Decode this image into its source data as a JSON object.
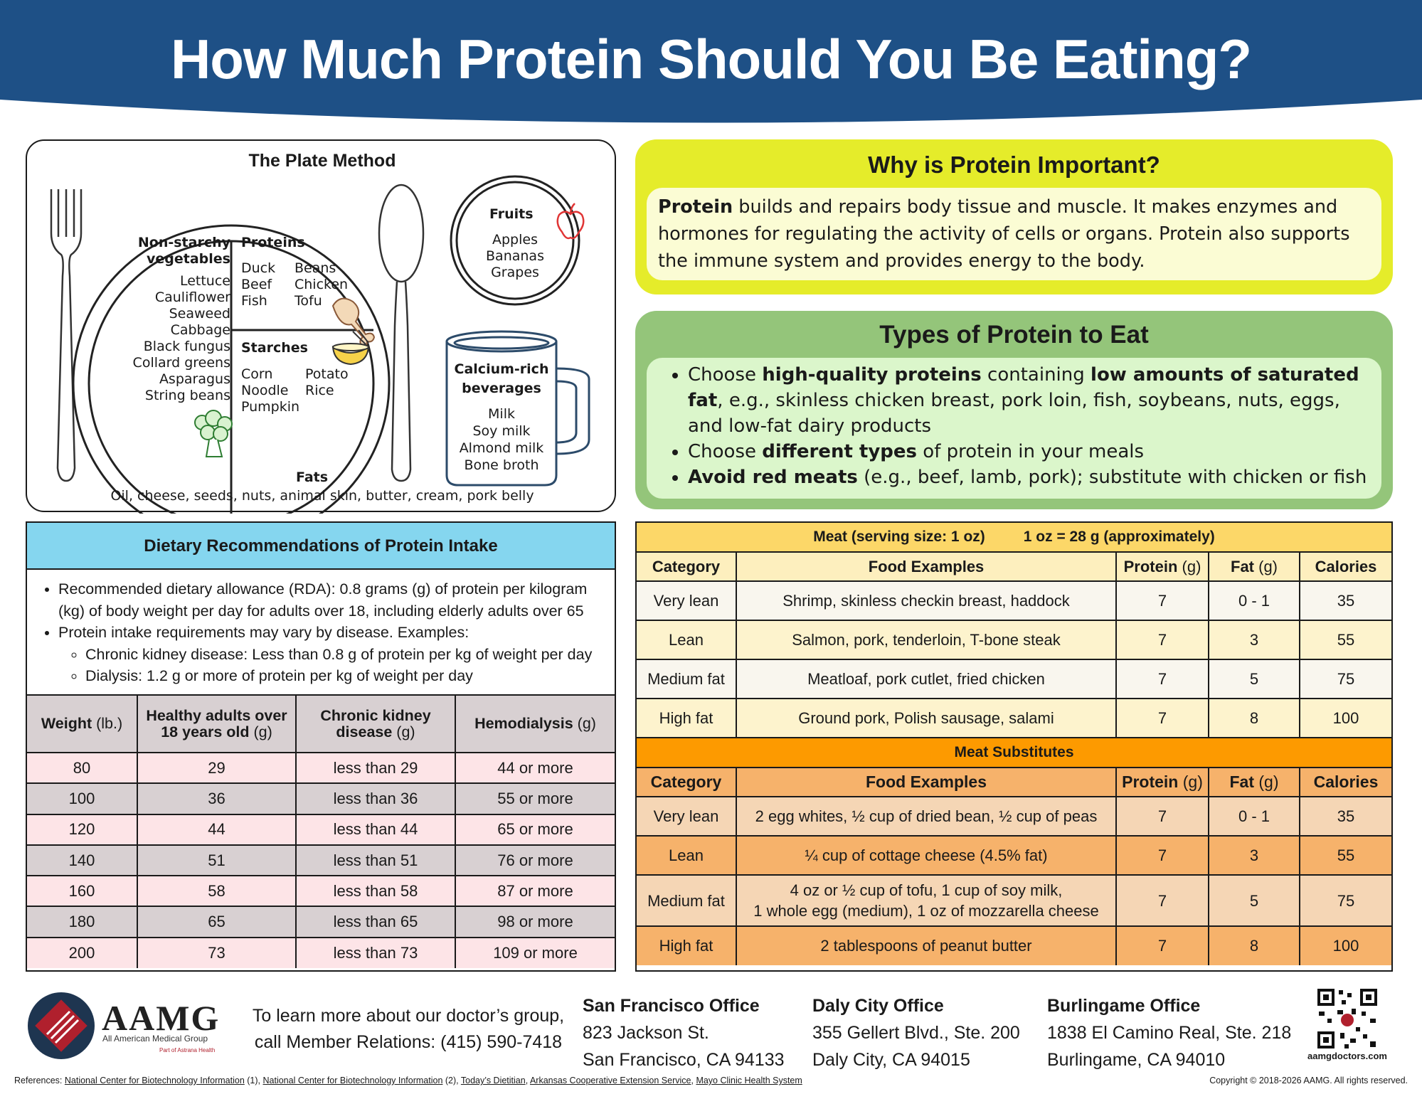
{
  "header": {
    "title": "How Much Protein Should You Be Eating?",
    "bg_color": "#1e5086"
  },
  "plate": {
    "title": "The Plate Method",
    "veg_heading_1": "Non-starchy",
    "veg_heading_2": "vegetables",
    "veg_items": [
      "Lettuce",
      "Cauliflower",
      "Seaweed",
      "Cabbage",
      "Black fungus",
      "Collard greens",
      "Asparagus",
      "String beans"
    ],
    "proteins_heading": "Proteins",
    "proteins_col1": [
      "Duck",
      "Beef",
      "Fish"
    ],
    "proteins_col2": [
      "Beans",
      "Chicken",
      "Tofu"
    ],
    "starches_heading": "Starches",
    "starches_col1": [
      "Corn",
      "Noodle",
      "Pumpkin"
    ],
    "starches_col2": [
      "Potato",
      "Rice"
    ],
    "fats_heading": "Fats",
    "fats_text": "Oil, cheese, seeds, nuts, animal skin, butter, cream, pork belly",
    "fruits_heading": "Fruits",
    "fruits_items": [
      "Apples",
      "Bananas",
      "Grapes"
    ],
    "calcium_heading_1": "Calcium-rich",
    "calcium_heading_2": "beverages",
    "calcium_items": [
      "Milk",
      "Soy milk",
      "Almond milk",
      "Bone broth"
    ]
  },
  "why": {
    "title": "Why is Protein Important?",
    "lead": "Protein",
    "text": " builds and repairs body tissue and muscle. It makes enzymes and hormones for regulating the activity of cells or organs. Protein also supports the immune system and provides energy to the body."
  },
  "types": {
    "title": "Types of Protein to Eat",
    "b1_a": "Choose ",
    "b1_b": "high-quality proteins",
    "b1_c": " containing ",
    "b1_d": "low amounts of saturated fat",
    "b1_e": ", e.g., skinless chicken breast, pork loin, fish, soybeans, nuts, eggs, and low-fat dairy products",
    "b2_a": "Choose ",
    "b2_b": "different types",
    "b2_c": " of protein in your meals",
    "b3_a": "Avoid red meats",
    "b3_b": " (e.g., beef, lamb, pork); substitute with chicken or fish"
  },
  "diet": {
    "title": "Dietary Recommendations of Protein Intake",
    "bullet1": "Recommended dietary allowance (RDA): 0.8 grams (g) of protein per kilogram (kg) of body weight per day for adults over 18, including elderly adults over 65",
    "bullet2": "Protein intake requirements may vary by disease. Examples:",
    "sub1": "Chronic kidney disease: Less than 0.8 g of protein per kg of weight per day",
    "sub2": "Dialysis: 1.2 g or more of protein per kg of weight per day",
    "headers": {
      "weight": "Weight",
      "weight_unit": " (lb.)",
      "healthy_1": "Healthy adults over",
      "healthy_2": "18 years old",
      "healthy_unit": " (g)",
      "ckd_1": "Chronic kidney",
      "ckd_2": "disease",
      "ckd_unit": " (g)",
      "hemo": "Hemodialysis",
      "hemo_unit": " (g)"
    },
    "rows": [
      [
        "80",
        "29",
        "less than 29",
        "44 or more"
      ],
      [
        "100",
        "36",
        "less than 36",
        "55 or more"
      ],
      [
        "120",
        "44",
        "less than 44",
        "65 or more"
      ],
      [
        "140",
        "51",
        "less than 51",
        "76 or more"
      ],
      [
        "160",
        "58",
        "less than 58",
        "87 or more"
      ],
      [
        "180",
        "65",
        "less than 65",
        "98 or more"
      ],
      [
        "200",
        "73",
        "less than 73",
        "109 or more"
      ]
    ]
  },
  "meat": {
    "banner_a": "Meat (serving size: 1 oz)",
    "banner_b": "1 oz = 28 g (approximately)",
    "headers": {
      "category": "Category",
      "examples": "Food Examples",
      "protein": "Protein",
      "protein_unit": " (g)",
      "fat": "Fat",
      "fat_unit": " (g)",
      "calories": "Calories"
    },
    "rows": [
      [
        "Very lean",
        "Shrimp, skinless checkin breast, haddock",
        "7",
        "0 - 1",
        "35"
      ],
      [
        "Lean",
        "Salmon, pork, tenderloin, T-bone steak",
        "7",
        "3",
        "55"
      ],
      [
        "Medium fat",
        "Meatloaf, pork cutlet, fried chicken",
        "7",
        "5",
        "75"
      ],
      [
        "High fat",
        "Ground pork, Polish sausage, salami",
        "7",
        "8",
        "100"
      ]
    ],
    "sub_banner": "Meat Substitutes",
    "sub_rows": [
      [
        "Very lean",
        "2 egg whites, ½ cup of dried bean, ½ cup of peas",
        "7",
        "0 - 1",
        "35"
      ],
      [
        "Lean",
        "¼ cup of cottage cheese (4.5% fat)",
        "7",
        "3",
        "55"
      ],
      [
        "Medium fat",
        "4 oz or ½ cup of tofu, 1 cup of soy milk,",
        "7",
        "5",
        "75"
      ],
      [
        "High fat",
        "2 tablespoons of peanut butter",
        "7",
        "8",
        "100"
      ]
    ],
    "sub_row3_line2": "1 whole egg (medium), 1 oz of mozzarella cheese"
  },
  "footer": {
    "logo_text": "AAMG",
    "logo_sub": "All American Medical Group",
    "logo_part": "Part of",
    "logo_partner": "Astrana Health",
    "contact_1": "To learn more about our doctor’s group,",
    "contact_2": "call Member Relations: (415) 590-7418",
    "offices": [
      {
        "name": "San Francisco Office",
        "line1": "823 Jackson St.",
        "line2": "San Francisco, CA 94133"
      },
      {
        "name": "Daly City Office",
        "line1": "355 Gellert Blvd., Ste. 200",
        "line2": "Daly City, CA 94015"
      },
      {
        "name": "Burlingame Office",
        "line1": "1838 El Camino Real, Ste. 218",
        "line2": "Burlingame, CA 94010"
      }
    ],
    "website": "aamgdoctors.com",
    "refs_label": "References: ",
    "ref1": "National Center for Biotechnology Information",
    "ref1_num": " (1), ",
    "ref2": "National Center for Biotechnology Information",
    "ref2_num": " (2), ",
    "ref3": "Today’s Dietitian",
    "ref4": "Arkansas Cooperative Extension Service",
    "ref5": "Mayo Clinic Health System",
    "sep": ", ",
    "copyright": "Copyright © 2018-2026 AAMG. All rights reserved."
  }
}
